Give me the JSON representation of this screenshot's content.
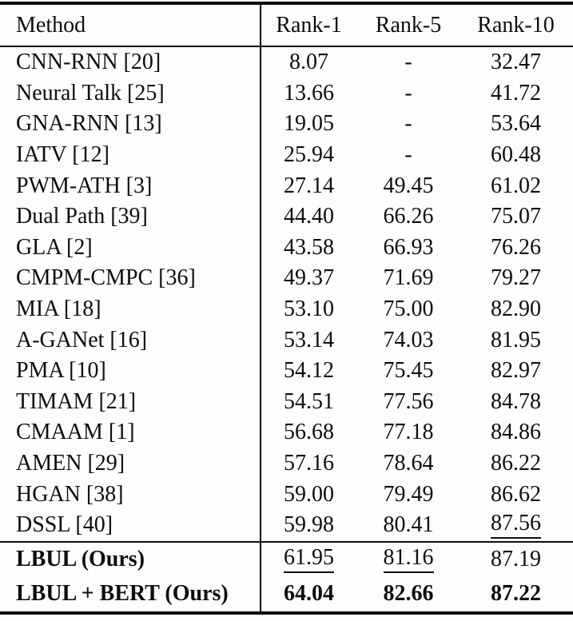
{
  "table": {
    "header": {
      "method": "Method",
      "rank1": "Rank-1",
      "rank5": "Rank-5",
      "rank10": "Rank-10"
    },
    "rows": [
      {
        "method": "CNN-RNN [20]",
        "rank1": "8.07",
        "rank5": "-",
        "rank10": "32.47"
      },
      {
        "method": "Neural Talk [25]",
        "rank1": "13.66",
        "rank5": "-",
        "rank10": "41.72"
      },
      {
        "method": "GNA-RNN [13]",
        "rank1": "19.05",
        "rank5": "-",
        "rank10": "53.64"
      },
      {
        "method": "IATV [12]",
        "rank1": "25.94",
        "rank5": "-",
        "rank10": "60.48"
      },
      {
        "method": "PWM-ATH [3]",
        "rank1": "27.14",
        "rank5": "49.45",
        "rank10": "61.02"
      },
      {
        "method": "Dual Path [39]",
        "rank1": "44.40",
        "rank5": "66.26",
        "rank10": "75.07"
      },
      {
        "method": "GLA [2]",
        "rank1": "43.58",
        "rank5": "66.93",
        "rank10": "76.26"
      },
      {
        "method": "CMPM-CMPC [36]",
        "rank1": "49.37",
        "rank5": "71.69",
        "rank10": "79.27"
      },
      {
        "method": "MIA [18]",
        "rank1": "53.10",
        "rank5": "75.00",
        "rank10": "82.90"
      },
      {
        "method": "A-GANet [16]",
        "rank1": "53.14",
        "rank5": "74.03",
        "rank10": "81.95"
      },
      {
        "method": "PMA [10]",
        "rank1": "54.12",
        "rank5": "75.45",
        "rank10": "82.97"
      },
      {
        "method": "TIMAM [21]",
        "rank1": "54.51",
        "rank5": "77.56",
        "rank10": "84.78"
      },
      {
        "method": "CMAAM [1]",
        "rank1": "56.68",
        "rank5": "77.18",
        "rank10": "84.86"
      },
      {
        "method": "AMEN [29]",
        "rank1": "57.16",
        "rank5": "78.64",
        "rank10": "86.22"
      },
      {
        "method": "HGAN [38]",
        "rank1": "59.00",
        "rank5": "79.49",
        "rank10": "86.62"
      },
      {
        "method": "DSSL [40]",
        "rank1": "59.98",
        "rank5": "80.41",
        "rank10": "87.56"
      }
    ],
    "ours_rows": [
      {
        "method": "LBUL (Ours)",
        "rank1": "61.95",
        "rank5": "81.16",
        "rank10": "87.19"
      },
      {
        "method": "LBUL + BERT (Ours)",
        "rank1": "64.04",
        "rank5": "82.66",
        "rank10": "87.22"
      }
    ]
  }
}
